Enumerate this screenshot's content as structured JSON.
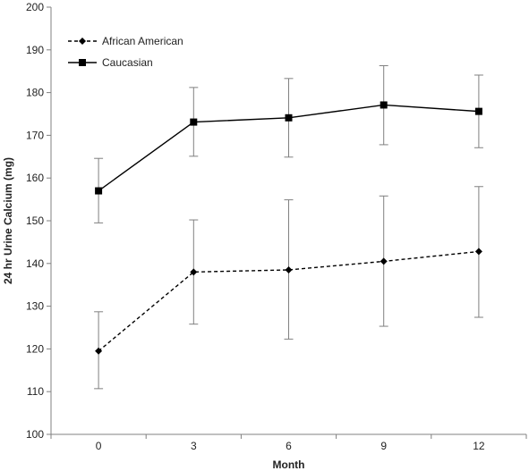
{
  "chart_data": {
    "type": "line",
    "title": "",
    "xlabel": "Month",
    "ylabel": "24 hr Urine Calcium (mg)",
    "x": [
      0,
      3,
      6,
      9,
      12
    ],
    "x_tick_labels": [
      "0",
      "3",
      "6",
      "9",
      "12"
    ],
    "ylim": [
      100,
      200
    ],
    "y_ticks": [
      100,
      110,
      120,
      130,
      140,
      150,
      160,
      170,
      180,
      190,
      200
    ],
    "grid": false,
    "legend_position": "top-left",
    "series": [
      {
        "name": "African American",
        "marker": "diamond",
        "line_style": "dashed",
        "color": "#000000",
        "values": [
          119.5,
          138,
          138.5,
          140.5,
          142.8
        ],
        "error_low": [
          110.7,
          125.8,
          122.3,
          125.3,
          127.4
        ],
        "error_high": [
          128.7,
          150.2,
          154.9,
          155.8,
          158.0
        ]
      },
      {
        "name": "Caucasian",
        "marker": "square",
        "line_style": "solid",
        "color": "#000000",
        "values": [
          157,
          173.1,
          174.1,
          177.1,
          175.6
        ],
        "error_low": [
          149.5,
          165.1,
          164.9,
          167.8,
          167.1
        ],
        "error_high": [
          164.6,
          181.2,
          183.3,
          186.3,
          184.1
        ]
      }
    ],
    "error_bar_color": "#808080"
  }
}
